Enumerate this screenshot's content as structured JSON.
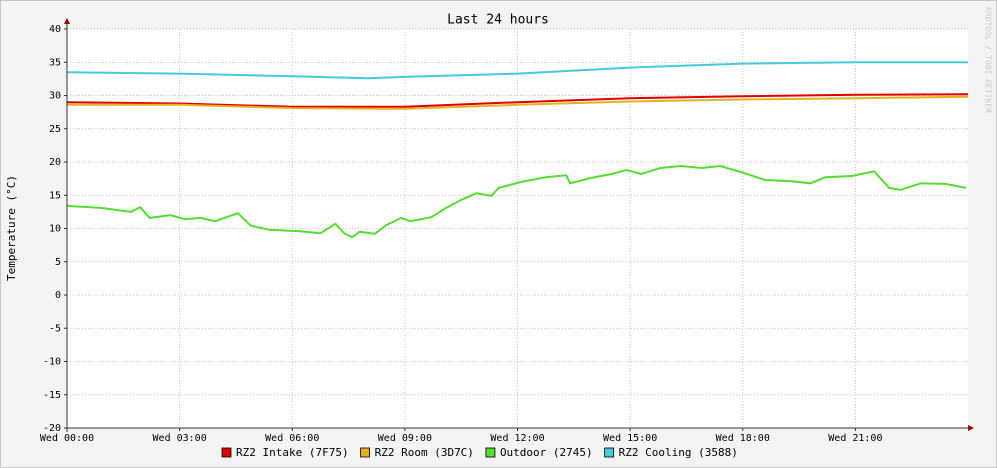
{
  "chart_data": {
    "type": "line",
    "title": "Last 24 hours",
    "y_label": "Temperature (°C)",
    "watermark": "RRDTOOL / TOBI OETIKER",
    "xlim": [
      0,
      24
    ],
    "xticks": [
      {
        "value": 0,
        "label": "Wed 00:00"
      },
      {
        "value": 3,
        "label": "Wed 03:00"
      },
      {
        "value": 6,
        "label": "Wed 06:00"
      },
      {
        "value": 9,
        "label": "Wed 09:00"
      },
      {
        "value": 12,
        "label": "Wed 12:00"
      },
      {
        "value": 15,
        "label": "Wed 15:00"
      },
      {
        "value": 18,
        "label": "Wed 18:00"
      },
      {
        "value": 21,
        "label": "Wed 21:00"
      }
    ],
    "ylim": [
      -20,
      40
    ],
    "yticks": [
      -20,
      -15,
      -10,
      -5,
      0,
      5,
      10,
      15,
      20,
      25,
      30,
      35,
      40
    ],
    "grid": true,
    "legend": "bottom",
    "series": [
      {
        "name": "RZ2 Intake (7F75)",
        "color": "#e00000",
        "x": [
          0,
          3,
          6,
          9,
          12,
          15,
          18,
          21,
          24
        ],
        "values": [
          29.0,
          28.8,
          28.3,
          28.3,
          29.0,
          29.6,
          29.9,
          30.1,
          30.2
        ]
      },
      {
        "name": "RZ2 Room (3D7C)",
        "color": "#e6b020",
        "x": [
          0,
          3,
          6,
          9,
          12,
          15,
          18,
          21,
          24
        ],
        "values": [
          28.6,
          28.6,
          28.1,
          28.0,
          28.6,
          29.1,
          29.4,
          29.6,
          29.8
        ]
      },
      {
        "name": "Outdoor (2745)",
        "color": "#55dd33",
        "x": [
          0,
          0.9,
          1.7,
          1.95,
          2.2,
          2.75,
          3.15,
          3.55,
          3.95,
          4.55,
          4.9,
          5.4,
          6.2,
          6.75,
          7.15,
          7.4,
          7.6,
          7.8,
          8.2,
          8.5,
          8.9,
          9.15,
          9.7,
          10.1,
          10.5,
          10.9,
          11.3,
          11.5,
          12.1,
          12.75,
          13.3,
          13.4,
          13.95,
          14.5,
          14.9,
          15.3,
          15.8,
          16.35,
          16.9,
          17.4,
          17.95,
          18.6,
          19.3,
          19.8,
          20.2,
          20.9,
          21.5,
          21.9,
          22.2,
          22.75,
          23.4,
          23.95
        ],
        "values": [
          13.4,
          13.1,
          12.5,
          13.2,
          11.6,
          12.0,
          11.4,
          11.6,
          11.1,
          12.3,
          10.4,
          9.8,
          9.6,
          9.3,
          10.7,
          9.2,
          8.7,
          9.5,
          9.2,
          10.5,
          11.6,
          11.1,
          11.7,
          13.1,
          14.3,
          15.3,
          14.9,
          16.1,
          17.0,
          17.7,
          18.0,
          16.8,
          17.6,
          18.2,
          18.8,
          18.2,
          19.1,
          19.4,
          19.1,
          19.4,
          18.5,
          17.3,
          17.1,
          16.8,
          17.7,
          17.9,
          18.6,
          16.1,
          15.8,
          16.8,
          16.7,
          16.1
        ]
      },
      {
        "name": "RZ2 Cooling (3588)",
        "color": "#44ccdd",
        "x": [
          0,
          3,
          6,
          8,
          9,
          12,
          15,
          18,
          21,
          24
        ],
        "values": [
          33.5,
          33.3,
          32.9,
          32.6,
          32.8,
          33.3,
          34.2,
          34.8,
          35.0,
          35.0
        ]
      }
    ]
  }
}
